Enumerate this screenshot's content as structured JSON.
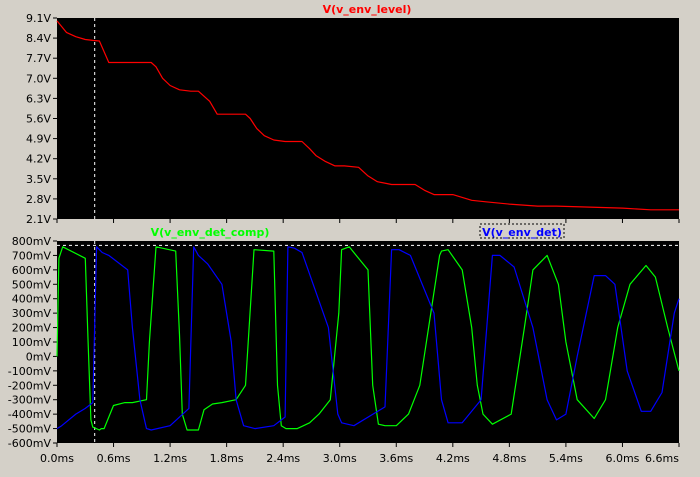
{
  "window": {
    "background": "#d4d0c8",
    "plot_background": "#000000",
    "grid_color": "#808080",
    "axis_text_color": "#000000"
  },
  "chart_data": [
    {
      "type": "line",
      "title": "V(v_env_level)",
      "xlabel": "",
      "ylabel": "",
      "xlim": [
        0.0,
        6.6
      ],
      "ylim": [
        2.1,
        9.1
      ],
      "yticks": [
        2.1,
        2.8,
        3.5,
        4.2,
        4.9,
        5.6,
        6.3,
        7.0,
        7.7,
        8.4,
        9.1
      ],
      "yticklabels": [
        "2.1V",
        "2.8V",
        "3.5V",
        "4.2V",
        "4.9V",
        "5.6V",
        "6.3V",
        "7.0V",
        "7.7V",
        "8.4V",
        "9.1V"
      ],
      "grid": false,
      "cursor": {
        "orientation": "vertical",
        "x": 0.4,
        "style": "dashed",
        "color": "#ffffff"
      },
      "series": [
        {
          "name": "V(v_env_level)",
          "color": "#ff0000",
          "x": [
            0.0,
            0.05,
            0.1,
            0.2,
            0.3,
            0.38,
            0.45,
            0.55,
            1.0,
            1.05,
            1.12,
            1.2,
            1.3,
            1.42,
            1.5,
            1.62,
            1.7,
            2.0,
            2.05,
            2.12,
            2.2,
            2.3,
            2.42,
            2.6,
            2.68,
            2.75,
            2.85,
            2.95,
            3.05,
            3.2,
            3.3,
            3.4,
            3.55,
            3.8,
            3.9,
            4.0,
            4.2,
            4.4,
            4.55,
            4.8,
            5.1,
            5.3,
            6.0,
            6.3,
            6.6
          ],
          "y": [
            9.0,
            8.8,
            8.6,
            8.45,
            8.35,
            8.32,
            8.3,
            7.55,
            7.55,
            7.4,
            7.0,
            6.75,
            6.6,
            6.55,
            6.55,
            6.2,
            5.75,
            5.75,
            5.6,
            5.25,
            5.0,
            4.85,
            4.8,
            4.8,
            4.55,
            4.3,
            4.1,
            3.95,
            3.95,
            3.9,
            3.6,
            3.4,
            3.3,
            3.3,
            3.1,
            2.95,
            2.95,
            2.75,
            2.7,
            2.62,
            2.55,
            2.55,
            2.48,
            2.42,
            2.42
          ]
        }
      ]
    },
    {
      "type": "line",
      "title": "",
      "xlabel": "",
      "ylabel": "",
      "xlim": [
        0.0,
        6.6
      ],
      "ylim": [
        -600,
        800
      ],
      "yticks": [
        -600,
        -500,
        -400,
        -300,
        -200,
        -100,
        0,
        100,
        200,
        300,
        400,
        500,
        600,
        700,
        800
      ],
      "yticklabels": [
        "-600mV",
        "-500mV",
        "-400mV",
        "-300mV",
        "-200mV",
        "-100mV",
        "0mV",
        "100mV",
        "200mV",
        "300mV",
        "400mV",
        "500mV",
        "600mV",
        "700mV",
        "800mV"
      ],
      "xticks": [
        0.0,
        0.6,
        1.2,
        1.8,
        2.4,
        3.0,
        3.6,
        4.2,
        4.8,
        5.4,
        6.0,
        6.6
      ],
      "xticklabels": [
        "0.0ms",
        "0.6ms",
        "1.2ms",
        "1.8ms",
        "2.4ms",
        "3.0ms",
        "3.6ms",
        "4.2ms",
        "4.8ms",
        "5.4ms",
        "6.0ms",
        "6.6ms"
      ],
      "grid": false,
      "cursor_h": {
        "orientation": "horizontal",
        "y": 770,
        "style": "dashed",
        "color": "#ffffff"
      },
      "cursor_v": {
        "orientation": "vertical",
        "x": 0.4,
        "style": "dashed",
        "color": "#ffffff"
      },
      "series": [
        {
          "name": "V(v_env_det_comp)",
          "color": "#00ff00",
          "x": [
            0.0,
            0.02,
            0.06,
            0.3,
            0.33,
            0.36,
            0.38,
            0.45,
            0.47,
            0.5,
            0.6,
            0.72,
            0.8,
            0.95,
            0.98,
            1.05,
            1.26,
            1.3,
            1.33,
            1.38,
            1.5,
            1.53,
            1.56,
            1.65,
            1.75,
            1.9,
            2.0,
            2.09,
            2.3,
            2.34,
            2.38,
            2.43,
            2.55,
            2.68,
            2.78,
            2.9,
            2.99,
            3.02,
            3.1,
            3.3,
            3.35,
            3.41,
            3.48,
            3.6,
            3.73,
            3.85,
            4.06,
            4.08,
            4.15,
            4.3,
            4.4,
            4.46,
            4.52,
            4.62,
            4.82,
            4.96,
            5.05,
            5.2,
            5.32,
            5.4,
            5.52,
            5.7,
            5.82,
            5.95,
            6.08,
            6.25,
            6.35,
            6.48,
            6.6
          ],
          "y": [
            0,
            680,
            760,
            680,
            100,
            -440,
            -490,
            -510,
            -500,
            -500,
            -340,
            -320,
            -320,
            -300,
            100,
            760,
            730,
            150,
            -400,
            -510,
            -510,
            -440,
            -370,
            -330,
            -320,
            -300,
            -200,
            740,
            730,
            -200,
            -480,
            -500,
            -500,
            -460,
            -400,
            -300,
            300,
            740,
            760,
            600,
            -200,
            -470,
            -480,
            -480,
            -400,
            -200,
            700,
            730,
            740,
            600,
            200,
            -200,
            -400,
            -470,
            -400,
            200,
            600,
            700,
            500,
            100,
            -300,
            -430,
            -300,
            200,
            500,
            630,
            550,
            200,
            -100
          ]
        },
        {
          "name": "V(v_env_det)",
          "color": "#0000ff",
          "x": [
            0.0,
            0.05,
            0.2,
            0.3,
            0.38,
            0.42,
            0.48,
            0.55,
            0.75,
            0.8,
            0.88,
            0.95,
            1.0,
            1.2,
            1.4,
            1.45,
            1.5,
            1.6,
            1.75,
            1.85,
            1.9,
            1.98,
            2.1,
            2.3,
            2.42,
            2.45,
            2.52,
            2.6,
            2.88,
            2.98,
            3.02,
            3.15,
            3.48,
            3.55,
            3.63,
            3.75,
            4.0,
            4.08,
            4.15,
            4.3,
            4.5,
            4.62,
            4.7,
            4.85,
            5.05,
            5.2,
            5.3,
            5.4,
            5.52,
            5.7,
            5.82,
            5.92,
            6.05,
            6.2,
            6.3,
            6.42,
            6.55,
            6.6
          ],
          "y": [
            -500,
            -480,
            -400,
            -360,
            -320,
            760,
            720,
            700,
            600,
            200,
            -300,
            -500,
            -510,
            -480,
            -360,
            760,
            700,
            640,
            500,
            100,
            -300,
            -480,
            -500,
            -480,
            -420,
            760,
            750,
            720,
            200,
            -400,
            -460,
            -480,
            -350,
            740,
            740,
            700,
            300,
            -300,
            -460,
            -460,
            -300,
            700,
            700,
            620,
            200,
            -300,
            -440,
            -400,
            0,
            560,
            560,
            500,
            -100,
            -380,
            -380,
            -250,
            300,
            400
          ]
        }
      ],
      "legend": [
        {
          "label": "V(v_env_det_comp)",
          "color": "#00ff00"
        },
        {
          "label": "V(v_env_det)",
          "color": "#0000ff",
          "boxed": true
        }
      ]
    }
  ]
}
